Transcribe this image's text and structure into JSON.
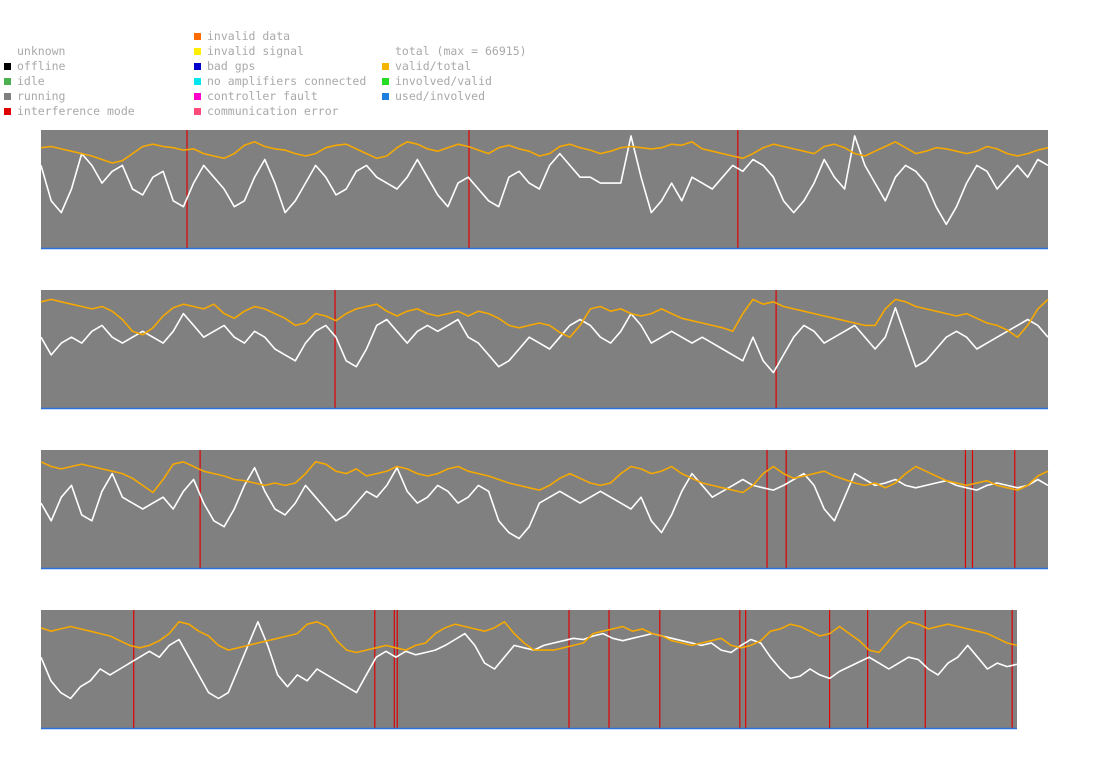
{
  "colors": {
    "plot_bg": "#808080",
    "used_line": "#ffffff",
    "valid_line": "#f5a800",
    "axis_line": "#2a6fdb",
    "interference": "#e00000",
    "legend_text": "#a9a9a9"
  },
  "legend": {
    "status": [
      {
        "label": "unknown",
        "color": null
      },
      {
        "label": "offline",
        "color": "#000000"
      },
      {
        "label": "idle",
        "color": "#4caf50"
      },
      {
        "label": "running",
        "color": "#808080"
      },
      {
        "label": "interference mode",
        "color": "#e00000"
      }
    ],
    "errors": [
      {
        "label": "invalid data",
        "color": "#ff6a00"
      },
      {
        "label": "invalid signal",
        "color": "#ffee00"
      },
      {
        "label": "bad gps",
        "color": "#0000cc"
      },
      {
        "label": "no amplifiers connected",
        "color": "#00e5ee"
      },
      {
        "label": "controller fault",
        "color": "#ff00cc"
      },
      {
        "label": "communication error",
        "color": "#ff4a7a"
      }
    ],
    "ratios": [
      {
        "label": "total (max = 66915)",
        "color": null
      },
      {
        "label": "valid/total",
        "color": "#f5b400"
      },
      {
        "label": "involved/valid",
        "color": "#22dd22"
      },
      {
        "label": "used/involved",
        "color": "#1e7fe0"
      }
    ]
  },
  "chart_data": [
    {
      "type": "line",
      "ylim": [
        0,
        1
      ],
      "interference_events": [
        0.145,
        0.425,
        0.692
      ],
      "series": [
        {
          "name": "valid/total",
          "values": [
            0.85,
            0.86,
            0.84,
            0.82,
            0.8,
            0.78,
            0.75,
            0.72,
            0.74,
            0.8,
            0.86,
            0.88,
            0.86,
            0.85,
            0.83,
            0.84,
            0.8,
            0.78,
            0.76,
            0.8,
            0.87,
            0.9,
            0.86,
            0.84,
            0.83,
            0.8,
            0.78,
            0.8,
            0.85,
            0.87,
            0.88,
            0.84,
            0.8,
            0.76,
            0.78,
            0.85,
            0.9,
            0.88,
            0.84,
            0.82,
            0.85,
            0.88,
            0.86,
            0.83,
            0.8,
            0.85,
            0.87,
            0.84,
            0.82,
            0.78,
            0.8,
            0.86,
            0.88,
            0.85,
            0.83,
            0.8,
            0.82,
            0.85,
            0.86,
            0.85,
            0.84,
            0.85,
            0.88,
            0.87,
            0.9,
            0.84,
            0.82,
            0.8,
            0.78,
            0.76,
            0.8,
            0.85,
            0.88,
            0.86,
            0.84,
            0.82,
            0.8,
            0.86,
            0.88,
            0.85,
            0.8,
            0.78,
            0.82,
            0.86,
            0.9,
            0.85,
            0.8,
            0.82,
            0.85,
            0.84,
            0.82,
            0.8,
            0.82,
            0.86,
            0.84,
            0.8,
            0.78,
            0.8,
            0.83,
            0.85
          ]
        },
        {
          "name": "used/involved",
          "values": [
            0.7,
            0.4,
            0.3,
            0.5,
            0.8,
            0.7,
            0.55,
            0.65,
            0.7,
            0.5,
            0.45,
            0.6,
            0.65,
            0.4,
            0.35,
            0.55,
            0.7,
            0.6,
            0.5,
            0.35,
            0.4,
            0.6,
            0.75,
            0.55,
            0.3,
            0.4,
            0.55,
            0.7,
            0.6,
            0.45,
            0.5,
            0.65,
            0.7,
            0.6,
            0.55,
            0.5,
            0.6,
            0.75,
            0.6,
            0.45,
            0.35,
            0.55,
            0.6,
            0.5,
            0.4,
            0.35,
            0.6,
            0.65,
            0.55,
            0.5,
            0.7,
            0.8,
            0.7,
            0.6,
            0.6,
            0.55,
            0.55,
            0.55,
            0.95,
            0.6,
            0.3,
            0.4,
            0.55,
            0.4,
            0.6,
            0.55,
            0.5,
            0.6,
            0.7,
            0.65,
            0.75,
            0.7,
            0.6,
            0.4,
            0.3,
            0.4,
            0.55,
            0.75,
            0.6,
            0.5,
            0.95,
            0.7,
            0.55,
            0.4,
            0.6,
            0.7,
            0.65,
            0.55,
            0.35,
            0.2,
            0.35,
            0.55,
            0.7,
            0.65,
            0.5,
            0.6,
            0.7,
            0.6,
            0.75,
            0.7
          ]
        }
      ]
    },
    {
      "type": "line",
      "ylim": [
        0,
        1
      ],
      "interference_events": [
        0.292,
        0.73
      ],
      "series": [
        {
          "name": "valid/total",
          "values": [
            0.9,
            0.92,
            0.9,
            0.88,
            0.86,
            0.84,
            0.86,
            0.82,
            0.75,
            0.65,
            0.62,
            0.68,
            0.78,
            0.85,
            0.88,
            0.86,
            0.84,
            0.88,
            0.8,
            0.76,
            0.82,
            0.86,
            0.84,
            0.8,
            0.76,
            0.7,
            0.72,
            0.8,
            0.78,
            0.74,
            0.8,
            0.84,
            0.86,
            0.88,
            0.82,
            0.78,
            0.82,
            0.84,
            0.8,
            0.78,
            0.8,
            0.82,
            0.78,
            0.82,
            0.8,
            0.76,
            0.7,
            0.68,
            0.7,
            0.72,
            0.7,
            0.64,
            0.6,
            0.7,
            0.84,
            0.86,
            0.82,
            0.84,
            0.8,
            0.78,
            0.8,
            0.84,
            0.8,
            0.76,
            0.74,
            0.72,
            0.7,
            0.68,
            0.65,
            0.8,
            0.92,
            0.88,
            0.9,
            0.86,
            0.84,
            0.82,
            0.8,
            0.78,
            0.76,
            0.74,
            0.72,
            0.7,
            0.7,
            0.84,
            0.92,
            0.9,
            0.86,
            0.84,
            0.82,
            0.8,
            0.78,
            0.8,
            0.76,
            0.72,
            0.7,
            0.66,
            0.6,
            0.7,
            0.84,
            0.92
          ]
        },
        {
          "name": "used/involved",
          "values": [
            0.6,
            0.45,
            0.55,
            0.6,
            0.55,
            0.65,
            0.7,
            0.6,
            0.55,
            0.6,
            0.65,
            0.6,
            0.55,
            0.65,
            0.8,
            0.7,
            0.6,
            0.65,
            0.7,
            0.6,
            0.55,
            0.65,
            0.6,
            0.5,
            0.45,
            0.4,
            0.55,
            0.65,
            0.7,
            0.6,
            0.4,
            0.35,
            0.5,
            0.7,
            0.75,
            0.65,
            0.55,
            0.65,
            0.7,
            0.65,
            0.7,
            0.75,
            0.6,
            0.55,
            0.45,
            0.35,
            0.4,
            0.5,
            0.6,
            0.55,
            0.5,
            0.6,
            0.7,
            0.75,
            0.7,
            0.6,
            0.55,
            0.65,
            0.8,
            0.7,
            0.55,
            0.6,
            0.65,
            0.6,
            0.55,
            0.6,
            0.55,
            0.5,
            0.45,
            0.4,
            0.6,
            0.4,
            0.3,
            0.45,
            0.6,
            0.7,
            0.65,
            0.55,
            0.6,
            0.65,
            0.7,
            0.6,
            0.5,
            0.6,
            0.85,
            0.6,
            0.35,
            0.4,
            0.5,
            0.6,
            0.65,
            0.6,
            0.5,
            0.55,
            0.6,
            0.65,
            0.7,
            0.75,
            0.7,
            0.6
          ]
        }
      ]
    },
    {
      "type": "line",
      "ylim": [
        0,
        1
      ],
      "interference_events": [
        0.158,
        0.721,
        0.74,
        0.918,
        0.925,
        0.967
      ],
      "series": [
        {
          "name": "valid/total",
          "values": [
            0.9,
            0.86,
            0.84,
            0.86,
            0.88,
            0.86,
            0.84,
            0.82,
            0.8,
            0.76,
            0.7,
            0.64,
            0.75,
            0.88,
            0.9,
            0.86,
            0.82,
            0.8,
            0.78,
            0.75,
            0.74,
            0.72,
            0.7,
            0.72,
            0.7,
            0.72,
            0.8,
            0.9,
            0.88,
            0.82,
            0.8,
            0.84,
            0.78,
            0.8,
            0.82,
            0.86,
            0.84,
            0.8,
            0.78,
            0.8,
            0.84,
            0.86,
            0.82,
            0.8,
            0.78,
            0.75,
            0.72,
            0.7,
            0.68,
            0.66,
            0.7,
            0.76,
            0.8,
            0.76,
            0.72,
            0.7,
            0.72,
            0.8,
            0.86,
            0.84,
            0.8,
            0.82,
            0.86,
            0.8,
            0.76,
            0.72,
            0.7,
            0.68,
            0.66,
            0.64,
            0.7,
            0.8,
            0.86,
            0.8,
            0.76,
            0.78,
            0.8,
            0.82,
            0.78,
            0.75,
            0.72,
            0.7,
            0.72,
            0.68,
            0.72,
            0.8,
            0.86,
            0.82,
            0.78,
            0.74,
            0.72,
            0.7,
            0.72,
            0.74,
            0.7,
            0.68,
            0.66,
            0.7,
            0.78,
            0.82
          ]
        },
        {
          "name": "used/involved",
          "values": [
            0.55,
            0.4,
            0.6,
            0.7,
            0.45,
            0.4,
            0.65,
            0.8,
            0.6,
            0.55,
            0.5,
            0.55,
            0.6,
            0.5,
            0.65,
            0.75,
            0.55,
            0.4,
            0.35,
            0.5,
            0.7,
            0.85,
            0.65,
            0.5,
            0.45,
            0.55,
            0.7,
            0.6,
            0.5,
            0.4,
            0.45,
            0.55,
            0.65,
            0.6,
            0.7,
            0.85,
            0.65,
            0.55,
            0.6,
            0.7,
            0.65,
            0.55,
            0.6,
            0.7,
            0.65,
            0.4,
            0.3,
            0.25,
            0.35,
            0.55,
            0.6,
            0.65,
            0.6,
            0.55,
            0.6,
            0.65,
            0.6,
            0.55,
            0.5,
            0.6,
            0.4,
            0.3,
            0.45,
            0.65,
            0.8,
            0.7,
            0.6,
            0.65,
            0.7,
            0.75,
            0.7,
            0.68,
            0.66,
            0.7,
            0.75,
            0.8,
            0.7,
            0.5,
            0.4,
            0.6,
            0.8,
            0.75,
            0.7,
            0.72,
            0.75,
            0.7,
            0.68,
            0.7,
            0.72,
            0.74,
            0.7,
            0.68,
            0.66,
            0.7,
            0.72,
            0.7,
            0.68,
            0.7,
            0.75,
            0.7
          ]
        }
      ]
    },
    {
      "type": "line",
      "ylim": [
        0,
        1
      ],
      "interference_events": [
        0.095,
        0.342,
        0.362,
        0.365,
        0.541,
        0.582,
        0.634,
        0.716,
        0.722,
        0.808,
        0.847,
        0.906,
        0.995
      ],
      "series": [
        {
          "name": "valid/total",
          "values": [
            0.85,
            0.82,
            0.84,
            0.86,
            0.84,
            0.82,
            0.8,
            0.78,
            0.74,
            0.7,
            0.68,
            0.7,
            0.74,
            0.8,
            0.9,
            0.88,
            0.82,
            0.78,
            0.7,
            0.66,
            0.68,
            0.7,
            0.72,
            0.74,
            0.76,
            0.78,
            0.8,
            0.88,
            0.9,
            0.86,
            0.74,
            0.66,
            0.64,
            0.66,
            0.68,
            0.7,
            0.68,
            0.66,
            0.7,
            0.72,
            0.8,
            0.85,
            0.88,
            0.86,
            0.84,
            0.82,
            0.85,
            0.9,
            0.8,
            0.72,
            0.66,
            0.66,
            0.66,
            0.68,
            0.7,
            0.72,
            0.8,
            0.82,
            0.84,
            0.86,
            0.82,
            0.84,
            0.8,
            0.78,
            0.74,
            0.72,
            0.7,
            0.72,
            0.74,
            0.76,
            0.7,
            0.68,
            0.7,
            0.74,
            0.82,
            0.84,
            0.88,
            0.86,
            0.82,
            0.78,
            0.8,
            0.86,
            0.8,
            0.74,
            0.66,
            0.64,
            0.74,
            0.84,
            0.9,
            0.88,
            0.84,
            0.86,
            0.88,
            0.86,
            0.84,
            0.82,
            0.8,
            0.76,
            0.72,
            0.7
          ]
        },
        {
          "name": "used/involved",
          "values": [
            0.6,
            0.4,
            0.3,
            0.25,
            0.35,
            0.4,
            0.5,
            0.45,
            0.5,
            0.55,
            0.6,
            0.65,
            0.6,
            0.7,
            0.75,
            0.6,
            0.45,
            0.3,
            0.25,
            0.3,
            0.5,
            0.7,
            0.9,
            0.7,
            0.45,
            0.35,
            0.45,
            0.4,
            0.5,
            0.45,
            0.4,
            0.35,
            0.3,
            0.45,
            0.6,
            0.65,
            0.6,
            0.65,
            0.62,
            0.64,
            0.66,
            0.7,
            0.75,
            0.8,
            0.7,
            0.55,
            0.5,
            0.6,
            0.7,
            0.68,
            0.66,
            0.7,
            0.72,
            0.74,
            0.76,
            0.75,
            0.78,
            0.8,
            0.76,
            0.74,
            0.76,
            0.78,
            0.8,
            0.78,
            0.76,
            0.74,
            0.72,
            0.7,
            0.72,
            0.66,
            0.64,
            0.7,
            0.75,
            0.72,
            0.6,
            0.5,
            0.42,
            0.44,
            0.5,
            0.45,
            0.42,
            0.48,
            0.52,
            0.56,
            0.6,
            0.55,
            0.5,
            0.55,
            0.6,
            0.58,
            0.5,
            0.45,
            0.55,
            0.6,
            0.7,
            0.6,
            0.5,
            0.55,
            0.52,
            0.54
          ]
        }
      ]
    }
  ]
}
